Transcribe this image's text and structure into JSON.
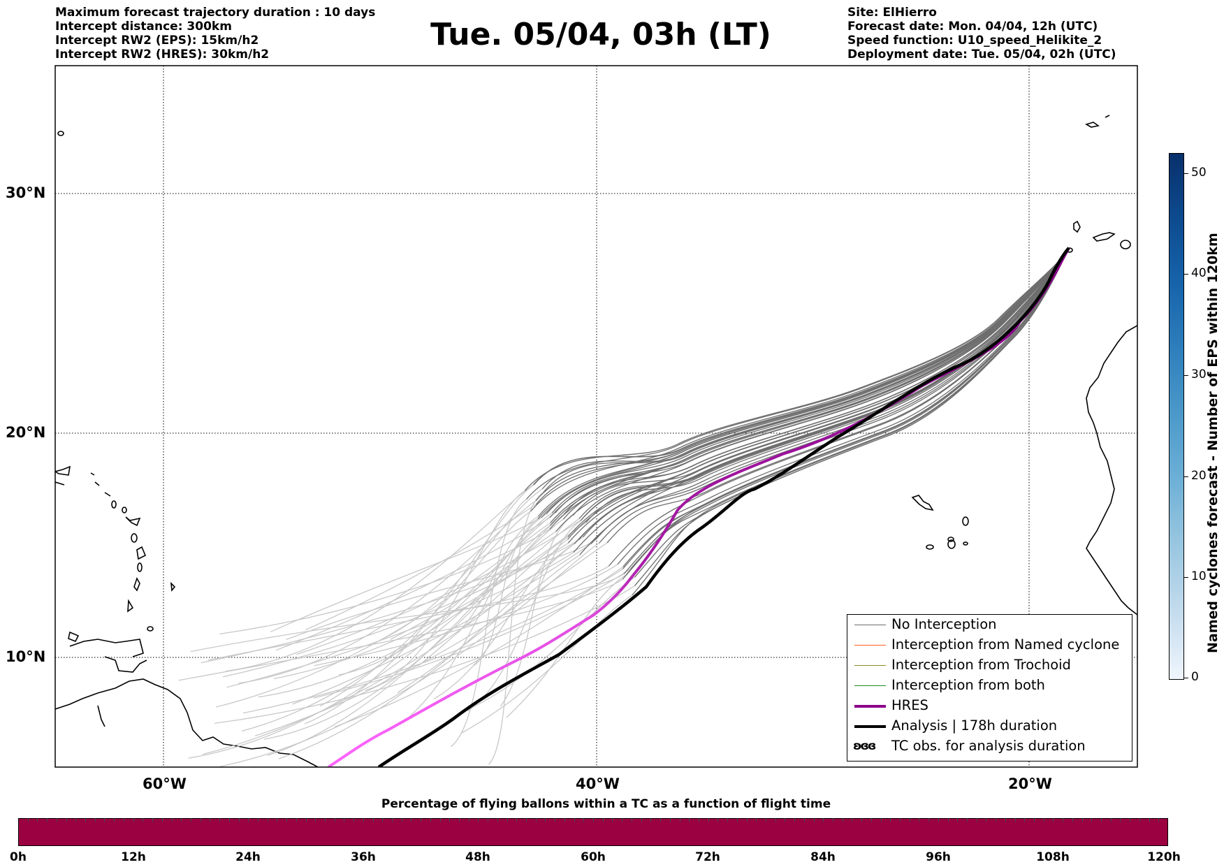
{
  "header": {
    "left_lines": [
      "Maximum forecast trajectory duration : 10 days",
      "Intercept distance: 300km",
      "Intercept RW2 (EPS):  15km/h2",
      "Intercept RW2 (HRES): 30km/h2"
    ],
    "title": "Tue. 05/04, 03h (LT)",
    "right_lines": [
      "Site: ElHierro",
      "Forecast date: Mon. 04/04, 12h (UTC)",
      "Speed function: U10_speed_Helikite_2",
      "Deployment date: Tue. 05/04, 02h (UTC)"
    ]
  },
  "map": {
    "lat_labels": [
      "30°N",
      "20°N",
      "10°N"
    ],
    "lon_labels": [
      "60°W",
      "40°W",
      "20°W"
    ],
    "colors": {
      "no_interception": "#6e6e6e",
      "named_cyclone": "#ff5a1e",
      "trochoid": "#8a8a1e",
      "both": "#1e8a1e",
      "hres": "#8b008b",
      "analysis": "#000000"
    }
  },
  "legend": {
    "items": [
      {
        "label": "No Interception",
        "color": "#6e6e6e"
      },
      {
        "label": "Interception from Named cyclone",
        "color": "#ff5a1e"
      },
      {
        "label": "Interception from Trochoid",
        "color": "#8a8a1e"
      },
      {
        "label": "Interception from both",
        "color": "#1e8a1e"
      },
      {
        "label": "HRES",
        "color": "#8b008b"
      },
      {
        "label": "Analysis | 178h duration",
        "color": "#000000"
      },
      {
        "label": "TC obs. for analysis duration",
        "symbol": "ʚɞɞ"
      }
    ]
  },
  "colorbar_right": {
    "label": "Named cyclones forecast - Number of EPS within 120km",
    "ticks": [
      "50",
      "40",
      "30",
      "20",
      "10",
      "0"
    ]
  },
  "colorbar_bottom": {
    "title": "Percentage of flying ballons within a TC as a function of flight time",
    "ticks": [
      "0h",
      "12h",
      "24h",
      "36h",
      "48h",
      "60h",
      "72h",
      "84h",
      "96h",
      "108h",
      "120h"
    ],
    "fill_color": "#9b0040"
  }
}
